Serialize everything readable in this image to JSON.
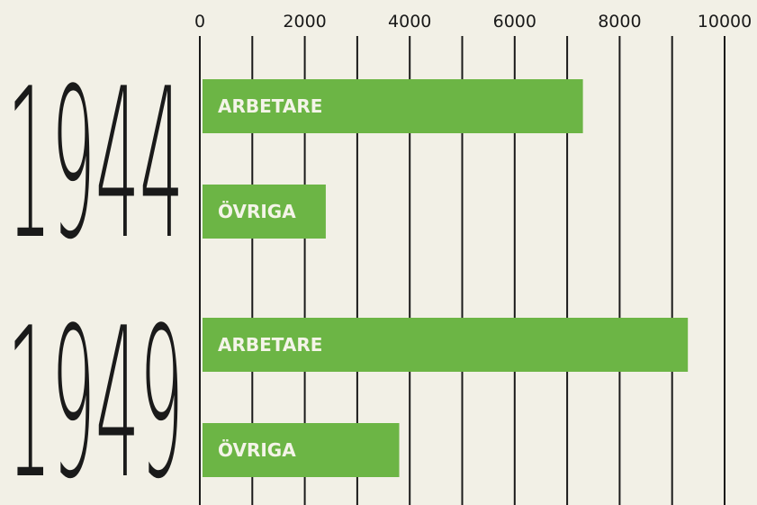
{
  "chart_data": {
    "type": "bar",
    "orientation": "horizontal",
    "color": "#6cb545",
    "xlim": [
      0,
      10000
    ],
    "xticks": [
      0,
      2000,
      4000,
      6000,
      8000,
      10000
    ],
    "minor_xticks": [
      1000,
      3000,
      5000,
      7000,
      9000
    ],
    "grid": true,
    "groups": [
      {
        "label": "1944",
        "categories": [
          "ARBETARE",
          "ÖVRIGA"
        ],
        "values": [
          7300,
          2400
        ]
      },
      {
        "label": "1949",
        "categories": [
          "ARBETARE",
          "ÖVRIGA"
        ],
        "values": [
          9300,
          3800
        ]
      }
    ]
  }
}
